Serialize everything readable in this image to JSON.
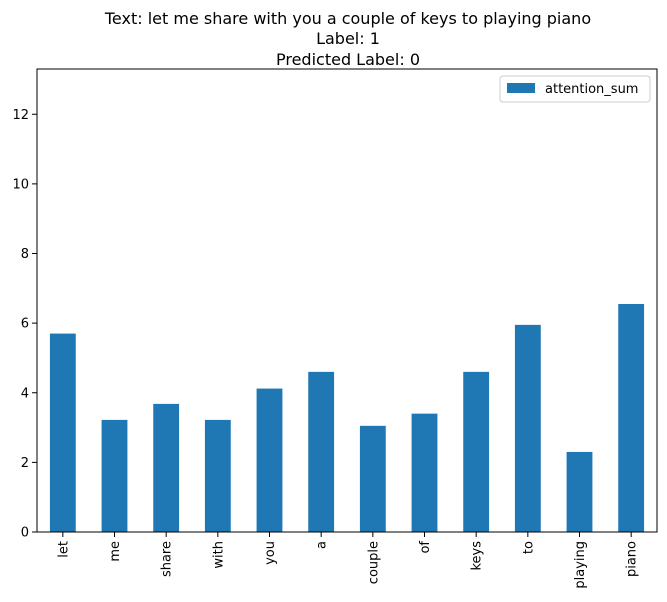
{
  "chart_data": {
    "type": "bar",
    "title_lines": [
      "Text: let me share with you a couple of keys to playing piano",
      "Label: 1",
      "Predicted Label: 0"
    ],
    "xlabel": "",
    "ylabel": "",
    "categories": [
      "let",
      "me",
      "share",
      "with",
      "you",
      "a",
      "couple",
      "of",
      "keys",
      "to",
      "playing",
      "piano"
    ],
    "series": [
      {
        "name": "attention_sum",
        "color": "#1f77b4",
        "values": [
          5.7,
          3.22,
          3.68,
          3.22,
          4.12,
          4.6,
          3.05,
          3.4,
          4.6,
          5.95,
          2.3,
          6.55
        ]
      }
    ],
    "yticks": [
      0,
      2,
      4,
      6,
      8,
      10,
      12
    ],
    "ylim": [
      0,
      13.3
    ],
    "grid": false,
    "legend_position": "top-right",
    "x_tick_rotation": "vertical"
  }
}
